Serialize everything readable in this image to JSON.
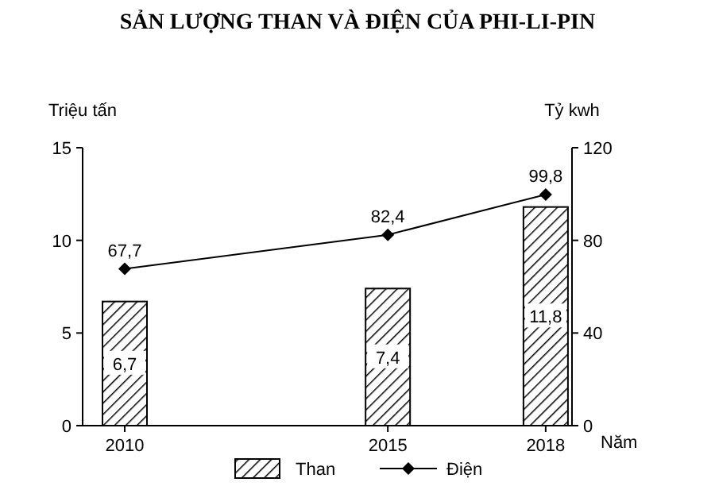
{
  "chart_data": {
    "type": "bar",
    "title": "SẢN LƯỢNG THAN VÀ ĐIỆN CỦA PHI-LI-PIN",
    "xlabel": "Năm",
    "ylabel": "Triệu tấn",
    "y2label": "Tỷ kwh",
    "x": [
      2010,
      2015,
      2018
    ],
    "xlim": [
      2009.2,
      2018.5
    ],
    "xticks": [
      2010,
      2015,
      2018
    ],
    "ylim": [
      0,
      15
    ],
    "yticks": [
      0,
      5,
      10,
      15
    ],
    "y2lim": [
      0,
      120
    ],
    "y2ticks": [
      0,
      40,
      80,
      120
    ],
    "series": [
      {
        "name": "Than",
        "color": "#000000",
        "values": [
          6.7,
          7.4,
          11.8
        ],
        "value_labels": [
          "6,7",
          "7,4",
          "11,8"
        ]
      },
      {
        "name": "Điện",
        "type": "line",
        "axis": "y2",
        "color": "#000000",
        "marker": "diamond",
        "values": [
          67.7,
          82.4,
          99.8
        ],
        "value_labels": [
          "67,7",
          "82,4",
          "99,8"
        ]
      }
    ],
    "legend": "bottom",
    "grid": false
  }
}
